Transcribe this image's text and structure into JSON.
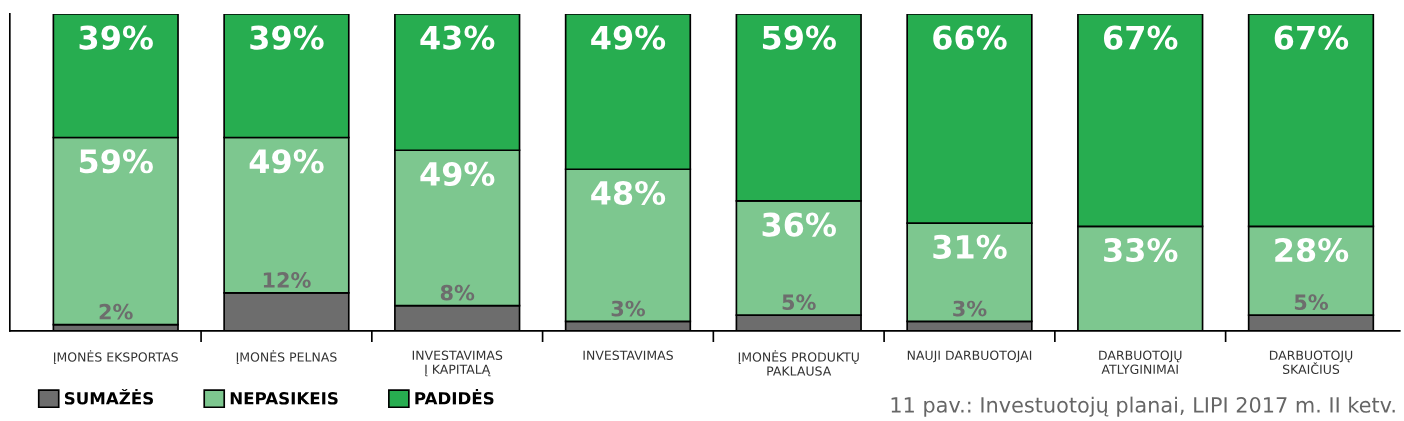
{
  "chart_data": {
    "type": "bar",
    "stacked": true,
    "categories": [
      "ĮMONĖS EKSPORTAS",
      "ĮMONĖS PELNAS",
      "INVESTAVIMAS\nĮ KAPITALĄ",
      "INVESTAVIMAS",
      "ĮMONĖS PRODUKTŲ\nPAKLAUSA",
      "NAUJI DARBUOTOJAI",
      "DARBUOTOJŲ\nATLYGINIMAI",
      "DARBUOTOJŲ\nSKAIČIUS"
    ],
    "series": [
      {
        "name": "SUMAŽĖS",
        "color": "#6d6d6d",
        "values": [
          2,
          12,
          8,
          3,
          5,
          3,
          0,
          5
        ],
        "value_labels": [
          "2%",
          "12%",
          "8%",
          "3%",
          "5%",
          "3%",
          null,
          "5%"
        ]
      },
      {
        "name": "NEPASIKEIS",
        "color": "#7dc78f",
        "values": [
          59,
          49,
          49,
          48,
          36,
          31,
          33,
          28
        ],
        "value_labels": [
          "59%",
          "49%",
          "49%",
          "48%",
          "36%",
          "31%",
          "33%",
          "28%"
        ]
      },
      {
        "name": "PADIDĖS",
        "color": "#27ad50",
        "values": [
          39,
          39,
          43,
          49,
          59,
          66,
          67,
          67
        ],
        "value_labels": [
          "39%",
          "39%",
          "43%",
          "49%",
          "59%",
          "66%",
          "67%",
          "67%"
        ]
      }
    ],
    "ylim": [
      0,
      100
    ],
    "tick_labels": "x",
    "grid": false,
    "legend": "bottom left",
    "annotations": [
      "11 pav.: Investuotojų planai, LIPI 2017 m. II ketv."
    ]
  }
}
